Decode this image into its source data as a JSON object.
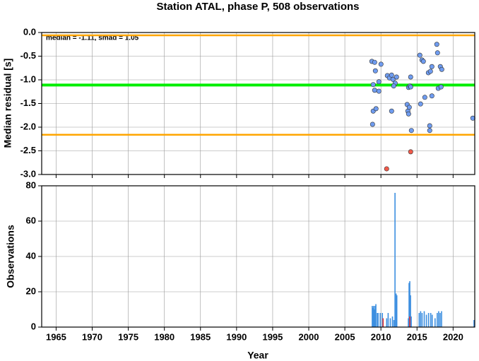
{
  "chart_data": [
    {
      "type": "scatter",
      "title": "Station ATAL, phase P, 508 observations",
      "annotation": "median = -1.11, smad = 1.05",
      "ylabel": "Median residual [s]",
      "ylim": [
        -3,
        0
      ],
      "yticks": [
        {
          "value": 0,
          "label": "0.0"
        },
        {
          "value": -0.5,
          "label": "-0.5"
        },
        {
          "value": -1,
          "label": "-1.0"
        },
        {
          "value": -1.5,
          "label": "-1.5"
        },
        {
          "value": -2,
          "label": "-2.0"
        },
        {
          "value": -2.5,
          "label": "-2.5"
        },
        {
          "value": -3,
          "label": "-3.0"
        }
      ],
      "grid": true,
      "hlines": [
        {
          "value": -1.11,
          "color": "#00ee00"
        },
        {
          "value": -0.06,
          "color": "#ffa500"
        },
        {
          "value": -2.16,
          "color": "#ffa500"
        }
      ],
      "series": [
        {
          "color": "#6f9cf0",
          "x": [
            2008.74,
            2009.13,
            2008.93,
            2009.13,
            2009.23,
            2008.84,
            2008.93,
            2009.32,
            2009.72,
            2009.72,
            2010.01,
            2010.89,
            2011.18,
            2011.48,
            2011.48,
            2011.67,
            2011.97,
            2011.77,
            2012.16,
            2013.63,
            2013.73,
            2013.83,
            2013.83,
            2014.02,
            2013.93,
            2014.12,
            2014.12,
            2014.22,
            2015.39,
            2015.69,
            2015.88,
            2015.49,
            2016.08,
            2016.57,
            2016.86,
            2017.06,
            2017.06,
            2016.76,
            2016.76,
            2017.74,
            2017.84,
            2017.94,
            2018.23,
            2018.33,
            2018.43,
            2022.73
          ],
          "values": [
            -0.61,
            -0.63,
            -1.1,
            -1.22,
            -0.81,
            -1.94,
            -1.66,
            -1.61,
            -1.24,
            -1.04,
            -0.67,
            -0.91,
            -0.96,
            -0.9,
            -1.66,
            -0.99,
            -1.07,
            -1.13,
            -0.94,
            -1.52,
            -1.66,
            -1.72,
            -1.16,
            -1.13,
            -1.58,
            -1.15,
            -0.94,
            -2.07,
            -0.48,
            -0.58,
            -0.61,
            -1.51,
            -1.37,
            -0.85,
            -0.82,
            -0.72,
            -1.34,
            -1.97,
            -2.07,
            -0.25,
            -0.43,
            -1.18,
            -0.72,
            -1.15,
            -0.78,
            -1.81
          ]
        },
        {
          "color": "#f05a4a",
          "x": [
            2010.79,
            2014.12
          ],
          "values": [
            -2.88,
            -2.52
          ]
        }
      ]
    },
    {
      "type": "histogram",
      "xlabel": "Year",
      "ylabel": "Observations",
      "xlim": [
        1963,
        2023
      ],
      "xticks": [
        1965,
        1970,
        1975,
        1980,
        1985,
        1990,
        1995,
        2000,
        2005,
        2010,
        2015,
        2020
      ],
      "ylim": [
        0,
        80
      ],
      "yticks": [
        0,
        20,
        40,
        60,
        80
      ],
      "grid": true,
      "series": [
        {
          "color": "#3d8fe0",
          "x": [
            2008.8,
            2008.9,
            2009.0,
            2009.1,
            2009.2,
            2009.3,
            2009.5,
            2009.6,
            2009.9,
            2010.2,
            2010.8,
            2011.0,
            2011.3,
            2011.6,
            2011.8,
            2011.95,
            2012.1,
            2012.2,
            2013.8,
            2013.9,
            2014.0,
            2014.1,
            2014.2,
            2015.3,
            2015.5,
            2015.7,
            2016.0,
            2016.3,
            2016.6,
            2016.9,
            2017.1,
            2017.5,
            2017.8,
            2018.0,
            2018.2,
            2018.4,
            2022.9
          ],
          "values": [
            12,
            11,
            12,
            10,
            12,
            13,
            8,
            8,
            8,
            8,
            5,
            8,
            5,
            6,
            4,
            76,
            19,
            18,
            5,
            25,
            26,
            18,
            6,
            8,
            9,
            8,
            9,
            7,
            8,
            8,
            7,
            5,
            8,
            9,
            8,
            9,
            4
          ]
        },
        {
          "color": "#e03030",
          "x": [
            2010.3,
            2014.0
          ],
          "values": [
            5,
            6
          ]
        }
      ]
    }
  ]
}
